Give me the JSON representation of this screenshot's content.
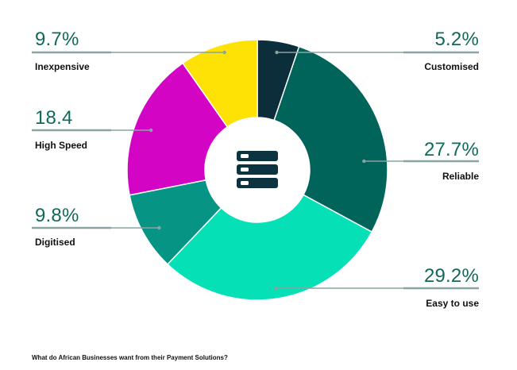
{
  "chart_data": {
    "type": "pie",
    "variant": "donut",
    "title": "What do African Businesses want from their Payment Solutions?",
    "slices": [
      {
        "label": "Customised",
        "value": 5.2,
        "display": "5.2%",
        "color": "#0b2e3a",
        "side": "right"
      },
      {
        "label": "Reliable",
        "value": 27.7,
        "display": "27.7%",
        "color": "#01645a",
        "side": "right"
      },
      {
        "label": "Easy to use",
        "value": 29.2,
        "display": "29.2%",
        "color": "#05e0b6",
        "side": "right"
      },
      {
        "label": "Digitised",
        "value": 9.8,
        "display": "9.8%",
        "color": "#069585",
        "side": "left"
      },
      {
        "label": "High Speed",
        "value": 18.4,
        "display": "18.4",
        "color": "#d404c4",
        "side": "left"
      },
      {
        "label": "Inexpensive",
        "value": 9.7,
        "display": "9.7%",
        "color": "#ffe205",
        "side": "left"
      }
    ],
    "center_icon": "server-stack-icon",
    "legend": "callouts"
  }
}
